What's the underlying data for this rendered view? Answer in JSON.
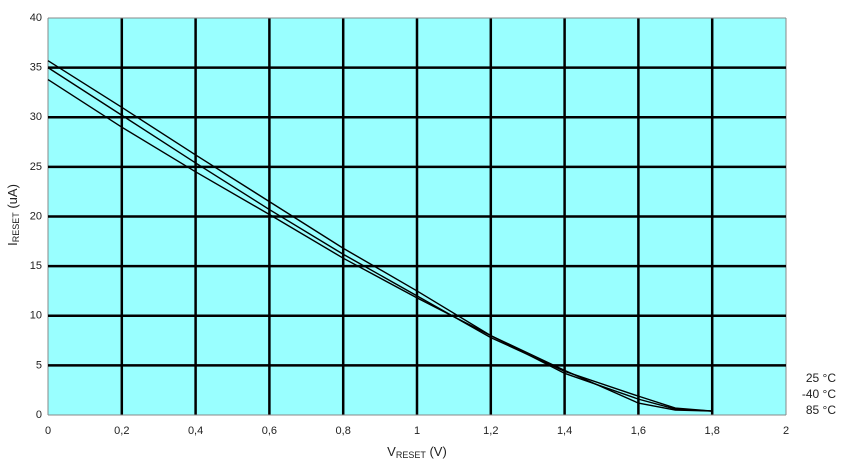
{
  "chart_data": {
    "type": "line",
    "xlabel": [
      "V",
      "RESET",
      " (V)"
    ],
    "ylabel": [
      "I",
      "RESET",
      " (uA)"
    ],
    "x": [
      0,
      0.2,
      0.4,
      0.6,
      0.8,
      1.0,
      1.2,
      1.4,
      1.6,
      1.7,
      1.8
    ],
    "series": [
      {
        "name": "25 °C",
        "color": "#000000",
        "values": [
          35.7,
          31,
          26.2,
          21.5,
          16.8,
          12.5,
          8,
          4.2,
          1.6,
          0.6,
          0.4
        ]
      },
      {
        "name": "-40 °C",
        "color": "#000000",
        "values": [
          35,
          30.2,
          25.4,
          20.7,
          16.2,
          12,
          7.8,
          4.4,
          1.9,
          0.7,
          0.4
        ]
      },
      {
        "name": "85 °C",
        "color": "#000000",
        "values": [
          33.8,
          29,
          24.5,
          20.2,
          15.8,
          11.8,
          8,
          4.5,
          1.2,
          0.5,
          0.4
        ]
      }
    ],
    "xlim": [
      0,
      2
    ],
    "xticks": [
      0,
      {
        "value": 0.2,
        "label": "0,2"
      },
      {
        "value": 0.4,
        "label": "0,4"
      },
      {
        "value": 0.6,
        "label": "0,6"
      },
      {
        "value": 0.8,
        "label": "0,8"
      },
      1,
      {
        "value": 1.2,
        "label": "1,2"
      },
      {
        "value": 1.4,
        "label": "1,4"
      },
      {
        "value": 1.6,
        "label": "1,6"
      },
      {
        "value": 1.8,
        "label": "1,8"
      },
      2
    ],
    "ylim": [
      0,
      40
    ],
    "yticks": [
      0,
      5,
      10,
      15,
      20,
      25,
      30,
      35,
      40
    ],
    "grid": true,
    "plot_background": "#99ffff",
    "legend": "right-bottom"
  }
}
